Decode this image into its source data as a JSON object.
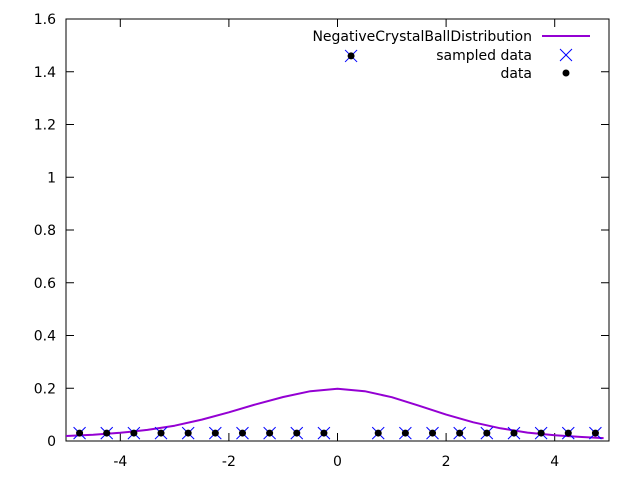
{
  "chart_data": {
    "type": "line",
    "xlim": [
      -5,
      5
    ],
    "ylim": [
      0,
      1.6
    ],
    "xticks": [
      -4,
      -2,
      0,
      2,
      4
    ],
    "yticks": [
      0,
      0.2,
      0.4,
      0.6,
      0.8,
      1,
      1.2,
      1.4,
      1.6
    ],
    "grid": false,
    "legend_position": "top-right",
    "series": [
      {
        "name": "NegativeCrystalBallDistribution",
        "kind": "line",
        "color": "#9400d3",
        "x": [
          -5.0,
          -4.5,
          -4.0,
          -3.5,
          -3.0,
          -2.5,
          -2.0,
          -1.5,
          -1.0,
          -0.5,
          0.0,
          0.5,
          1.0,
          1.5,
          2.0,
          2.5,
          3.0,
          3.5,
          4.0,
          4.5,
          4.9
        ],
        "y": [
          0.019,
          0.024,
          0.031,
          0.042,
          0.058,
          0.081,
          0.109,
          0.139,
          0.167,
          0.189,
          0.198,
          0.189,
          0.166,
          0.134,
          0.1,
          0.071,
          0.048,
          0.032,
          0.022,
          0.015,
          0.011
        ]
      },
      {
        "name": "sampled data",
        "kind": "cross",
        "color": "#0000ff",
        "x": [
          -4.75,
          -4.25,
          -3.75,
          -3.25,
          -2.75,
          -2.25,
          -1.75,
          -1.25,
          -0.75,
          -0.25,
          0.25,
          0.75,
          1.25,
          1.75,
          2.25,
          2.75,
          3.25,
          3.75,
          4.25,
          4.75
        ],
        "y": [
          0.03,
          0.03,
          0.03,
          0.03,
          0.03,
          0.03,
          0.03,
          0.03,
          0.03,
          0.03,
          1.46,
          0.03,
          0.03,
          0.03,
          0.03,
          0.03,
          0.03,
          0.03,
          0.03,
          0.03
        ]
      },
      {
        "name": "data",
        "kind": "dot",
        "color": "#000000",
        "x": [
          -4.75,
          -4.25,
          -3.75,
          -3.25,
          -2.75,
          -2.25,
          -1.75,
          -1.25,
          -0.75,
          -0.25,
          0.25,
          0.75,
          1.25,
          1.75,
          2.25,
          2.75,
          3.25,
          3.75,
          4.25,
          4.75
        ],
        "y": [
          0.03,
          0.03,
          0.03,
          0.03,
          0.03,
          0.03,
          0.03,
          0.03,
          0.03,
          0.03,
          1.46,
          0.03,
          0.03,
          0.03,
          0.03,
          0.03,
          0.03,
          0.03,
          0.03,
          0.03
        ]
      }
    ]
  }
}
